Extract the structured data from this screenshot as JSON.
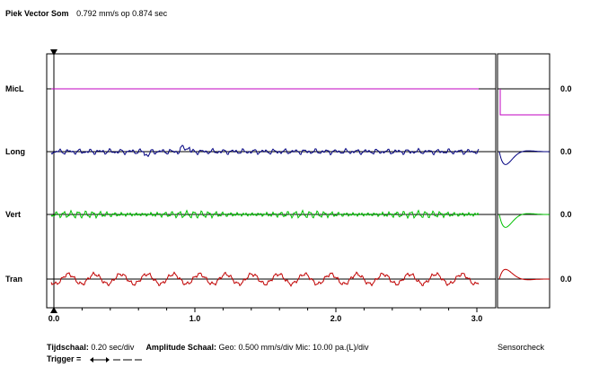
{
  "header": {
    "label": "Piek Vector Som",
    "value": "0.792 mm/s op 0.874 sec"
  },
  "channels": [
    {
      "name": "MicL",
      "value": "0.0",
      "color": "#c000c0"
    },
    {
      "name": "Long",
      "value": "0.0",
      "color": "#000080"
    },
    {
      "name": "Vert",
      "value": "0.0",
      "color": "#00c000"
    },
    {
      "name": "Tran",
      "value": "0.0",
      "color": "#c00000"
    }
  ],
  "axis": {
    "ticks": [
      "0.0",
      "1.0",
      "2.0",
      "3.0"
    ]
  },
  "footer": {
    "timescale_label": "Tijdschaal:",
    "timescale_value": "0.20 sec/div",
    "amplitude_label": "Amplitude Schaal:",
    "amplitude_value": "Geo: 0.500 mm/s/div Mic: 10.00 pa.(L)/div",
    "trigger_label": "Trigger ="
  },
  "sensorcheck": "Sensorcheck"
}
